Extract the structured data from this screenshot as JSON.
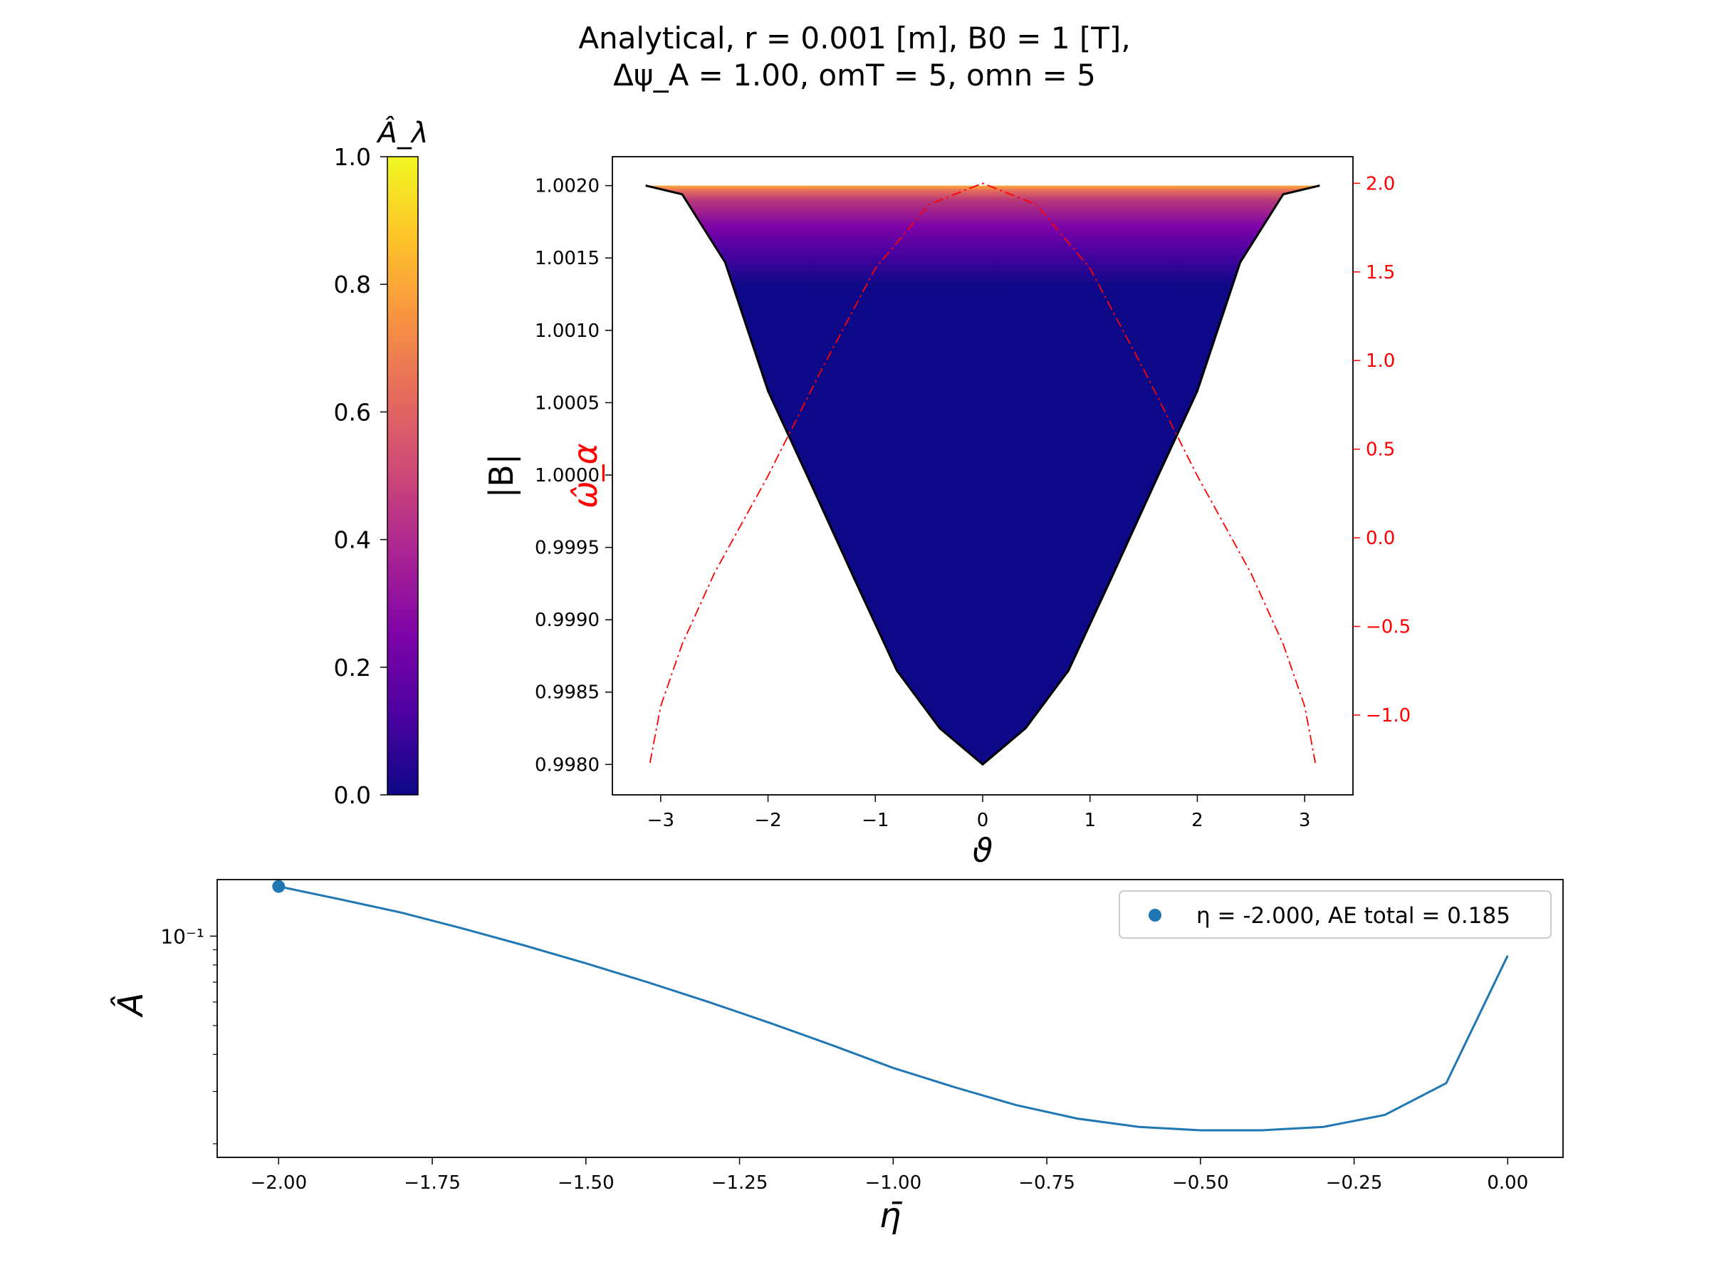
{
  "figure": {
    "title_line1": "Analytical, r = 0.001 [m], B0 = 1 [T],",
    "title_line2": "Δψ_A = 1.00, omT = 5, omn = 5"
  },
  "colors": {
    "b_curve": "#000000",
    "omega_curve": "#ff0000",
    "ae_series": "#1f77b4",
    "fill_base": "#0d0887",
    "right_axis": "#ff0000"
  },
  "chart_data": [
    {
      "id": "colorbar",
      "type": "heatmap",
      "label": "Â_λ",
      "colormap": "plasma",
      "ylim": [
        0,
        1
      ],
      "ticks": [
        0.0,
        0.2,
        0.4,
        0.6,
        0.8,
        1.0
      ],
      "tick_labels": [
        "0.0",
        "0.2",
        "0.4",
        "0.6",
        "0.8",
        "1.0"
      ]
    },
    {
      "id": "field",
      "type": "line",
      "xlabel": "ϑ",
      "ylabel": "|B|",
      "ylabel_right": "ω̂_α",
      "xlim": [
        -3.45,
        3.45
      ],
      "ylim": [
        0.99779,
        1.0022
      ],
      "ylim_right": [
        -1.45,
        2.15
      ],
      "x_ticks": [
        -3,
        -2,
        -1,
        0,
        1,
        2,
        3
      ],
      "x_tick_labels": [
        "−3",
        "−2",
        "−1",
        "0",
        "1",
        "2",
        "3"
      ],
      "y_ticks": [
        0.998,
        0.9985,
        0.999,
        0.9995,
        1.0,
        1.0005,
        1.001,
        1.0015,
        1.002
      ],
      "y_tick_labels": [
        "0.9980",
        "0.9985",
        "0.9990",
        "0.9995",
        "1.0000",
        "1.0005",
        "1.0010",
        "1.0015",
        "1.0020"
      ],
      "y_right_ticks": [
        -1.0,
        -0.5,
        0.0,
        0.5,
        1.0,
        1.5,
        2.0
      ],
      "y_right_tick_labels": [
        "−1.0",
        "−0.5",
        "0.0",
        "0.5",
        "1.0",
        "1.5",
        "2.0"
      ],
      "series": [
        {
          "id": "B",
          "axis": "left",
          "style": "solid",
          "x": [
            -3.14,
            -2.8,
            -2.4,
            -2.0,
            -1.6,
            -1.2,
            -0.8,
            -0.4,
            0.0,
            0.4,
            0.8,
            1.2,
            1.6,
            2.0,
            2.4,
            2.8,
            3.14
          ],
          "y": [
            1.002,
            1.00194,
            1.00147,
            1.00058,
            0.99994,
            0.99929,
            0.99865,
            0.99825,
            0.998,
            0.99825,
            0.99865,
            0.99929,
            0.99994,
            1.00058,
            1.00147,
            1.00194,
            1.002
          ]
        },
        {
          "id": "omega",
          "axis": "right",
          "style": "dashdot",
          "x": [
            -3.1,
            -3.0,
            -2.8,
            -2.5,
            -2.0,
            -1.5,
            -1.0,
            -0.5,
            0.0,
            0.5,
            1.0,
            1.5,
            2.0,
            2.5,
            2.8,
            3.0,
            3.1
          ],
          "y": [
            -1.27,
            -0.95,
            -0.6,
            -0.2,
            0.35,
            0.95,
            1.52,
            1.88,
            2.0,
            1.88,
            1.52,
            0.95,
            0.35,
            -0.2,
            -0.6,
            -0.95,
            -1.27
          ]
        }
      ],
      "well_fill": {
        "colormap": "plasma",
        "b_max": 1.002,
        "note_levels": [
          [
            1.002,
            1.0
          ],
          [
            1.0019,
            0.7
          ],
          [
            1.0017,
            0.35
          ],
          [
            1.0015,
            0.15
          ],
          [
            1.0013,
            0.0
          ]
        ]
      }
    },
    {
      "id": "ae",
      "type": "line",
      "xlabel": "η̄",
      "ylabel": "Â",
      "log_y": true,
      "xlim": [
        -2.1,
        0.09
      ],
      "ylim": [
        0.018,
        0.155
      ],
      "x_ticks": [
        -2.0,
        -1.75,
        -1.5,
        -1.25,
        -1.0,
        -0.75,
        -0.5,
        -0.25,
        0.0
      ],
      "x_tick_labels": [
        "−2.00",
        "−1.75",
        "−1.50",
        "−1.25",
        "−1.00",
        "−0.75",
        "−0.50",
        "−0.25",
        "0.00"
      ],
      "y_major_ticks": [
        0.1
      ],
      "y_major_tick_labels": [
        "10⁻¹"
      ],
      "y_minor_ticks": [
        0.02,
        0.03,
        0.04,
        0.05,
        0.06,
        0.07,
        0.08,
        0.09
      ],
      "series": [
        {
          "id": "AE",
          "x": [
            -2.0,
            -1.9,
            -1.8,
            -1.7,
            -1.6,
            -1.5,
            -1.4,
            -1.3,
            -1.2,
            -1.1,
            -1.0,
            -0.9,
            -0.8,
            -0.7,
            -0.6,
            -0.5,
            -0.4,
            -0.3,
            -0.2,
            -0.1,
            0.0
          ],
          "y": [
            0.147,
            0.133,
            0.12,
            0.106,
            0.093,
            0.081,
            0.07,
            0.06,
            0.051,
            0.043,
            0.036,
            0.031,
            0.027,
            0.0243,
            0.0228,
            0.0222,
            0.0222,
            0.0228,
            0.025,
            0.032,
            0.086
          ]
        }
      ],
      "highlight_point": {
        "x": -2.0,
        "y": 0.147
      },
      "legend": {
        "position": "upper right",
        "label": "η = -2.000, AE total = 0.185"
      }
    }
  ]
}
